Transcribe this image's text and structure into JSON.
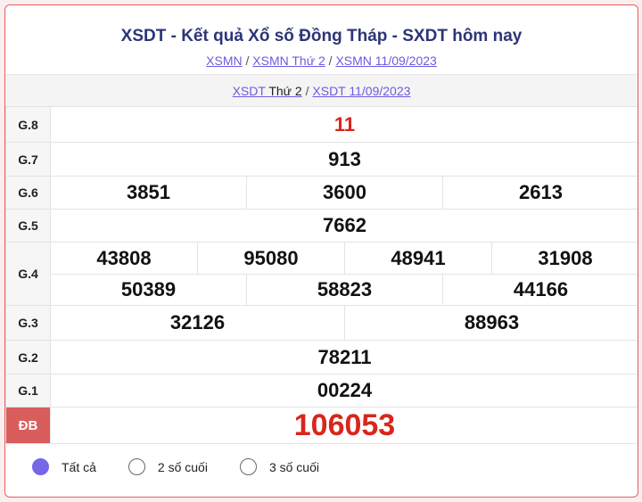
{
  "header": {
    "title": "XSDT - Kết quả Xổ số Đồng Tháp - SXDT hôm nay",
    "breadcrumbs": [
      "XSMN",
      "XSMN Thứ 2",
      "XSMN 11/09/2023"
    ],
    "sub_link1": "XSDT",
    "sub_plain": "Thứ 2",
    "sub_link2": "XSDT 11/09/2023",
    "sep": "/"
  },
  "results": {
    "g8": {
      "label": "G.8",
      "values": [
        "11"
      ]
    },
    "g7": {
      "label": "G.7",
      "values": [
        "913"
      ]
    },
    "g6": {
      "label": "G.6",
      "values": [
        "3851",
        "3600",
        "2613"
      ]
    },
    "g5": {
      "label": "G.5",
      "values": [
        "7662"
      ]
    },
    "g4": {
      "label": "G.4",
      "values": [
        "43808",
        "95080",
        "48941",
        "31908",
        "50389",
        "58823",
        "44166"
      ]
    },
    "g3": {
      "label": "G.3",
      "values": [
        "32126",
        "88963"
      ]
    },
    "g2": {
      "label": "G.2",
      "values": [
        "78211"
      ]
    },
    "g1": {
      "label": "G.1",
      "values": [
        "00224"
      ]
    },
    "db": {
      "label": "ĐB",
      "values": [
        "106053"
      ]
    }
  },
  "filters": {
    "options": [
      "Tất cả",
      "2 số cuối",
      "3 số cuối"
    ],
    "selected": "Tất cả"
  },
  "colors": {
    "accent": "#7567e8",
    "special": "#d8261c",
    "title": "#2c3577"
  }
}
